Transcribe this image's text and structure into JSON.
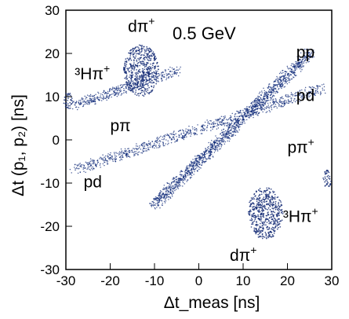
{
  "chart_data": {
    "type": "scatter",
    "title": "0.5 GeV",
    "xlabel": "Δt_meas  [ns]",
    "ylabel": "Δt (p₁, p₂) [ns]",
    "xlim": [
      -30,
      30
    ],
    "ylim": [
      -30,
      30
    ],
    "x_ticks": [
      -30,
      -20,
      -10,
      0,
      10,
      20,
      30
    ],
    "y_ticks": [
      -30,
      -20,
      -10,
      0,
      10,
      20,
      30
    ],
    "grid": false,
    "bands": [
      {
        "name": "pp",
        "x": [
          -10,
          25
        ],
        "y": [
          -15,
          20
        ]
      },
      {
        "name": "pd",
        "x": [
          -28,
          28
        ],
        "y": [
          -7,
          12
        ]
      },
      {
        "name": "pπ",
        "x": [
          -28,
          -5
        ],
        "y": [
          8,
          16
        ]
      }
    ],
    "annotations": [
      {
        "text": "dπ",
        "sup": "+",
        "x": -16,
        "y": 25
      },
      {
        "text": "³Hπ",
        "sup": "+",
        "x": -28,
        "y": 14
      },
      {
        "text": "pp",
        "x": 22,
        "y": 19
      },
      {
        "text": "pd",
        "x": 22,
        "y": 9
      },
      {
        "text": "pπ",
        "x": -20,
        "y": 2
      },
      {
        "text": "pd",
        "x": -26,
        "y": -11
      },
      {
        "text": "pπ",
        "sup": "+",
        "x": 20,
        "y": -3
      },
      {
        "text": "³Hπ",
        "sup": "+",
        "x": 19,
        "y": -19
      },
      {
        "text": "dπ",
        "sup": "+",
        "x": 7,
        "y": -28
      }
    ]
  }
}
